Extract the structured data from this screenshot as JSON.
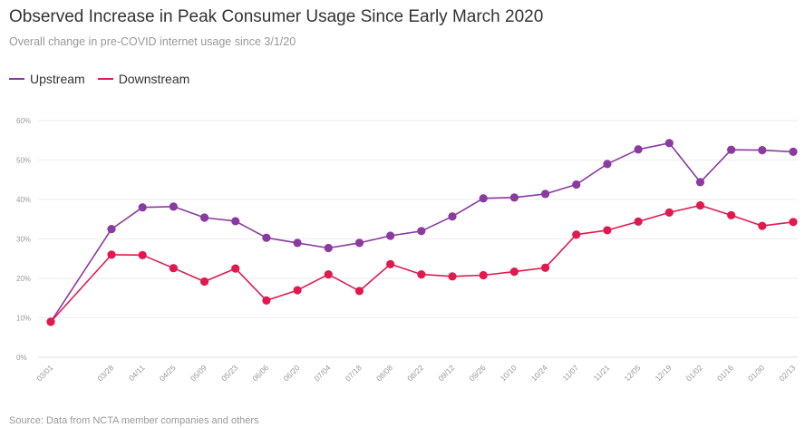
{
  "chart_data": {
    "type": "line",
    "title": "Observed Increase in Peak Consumer Usage Since Early March 2020",
    "subtitle": "Overall change in pre-COVID internet usage since 3/1/20",
    "source": "Source: Data from NCTA member companies and others",
    "x": [
      "03/01",
      "03/28",
      "04/11",
      "04/25",
      "05/09",
      "05/23",
      "06/06",
      "06/20",
      "07/04",
      "07/18",
      "08/08",
      "08/22",
      "09/12",
      "09/26",
      "10/10",
      "10/24",
      "11/07",
      "11/21",
      "12/05",
      "12/19",
      "01/02",
      "01/16",
      "01/30",
      "02/13"
    ],
    "series": [
      {
        "name": "Upstream",
        "color": "#8a3aa0",
        "values": [
          9,
          32.5,
          38,
          38.2,
          35.4,
          34.5,
          30.3,
          29,
          27.7,
          29,
          30.8,
          32,
          35.7,
          40.3,
          40.5,
          41.4,
          43.8,
          49,
          52.7,
          54.3,
          44.4,
          52.6,
          52.5,
          52.1
        ]
      },
      {
        "name": "Downstream",
        "color": "#e0194f",
        "values": [
          9,
          26,
          25.9,
          22.6,
          19.2,
          22.5,
          14.4,
          17,
          21,
          16.8,
          23.6,
          21,
          20.5,
          20.8,
          21.7,
          22.7,
          31.1,
          32.2,
          34.4,
          36.7,
          38.5,
          36,
          33.3,
          34.3
        ]
      }
    ],
    "y_ticks": [
      "0%",
      "10%",
      "20%",
      "30%",
      "40%",
      "50%",
      "60%"
    ],
    "ylim": [
      0,
      60
    ],
    "grid": true,
    "legend_position": "top-left"
  }
}
